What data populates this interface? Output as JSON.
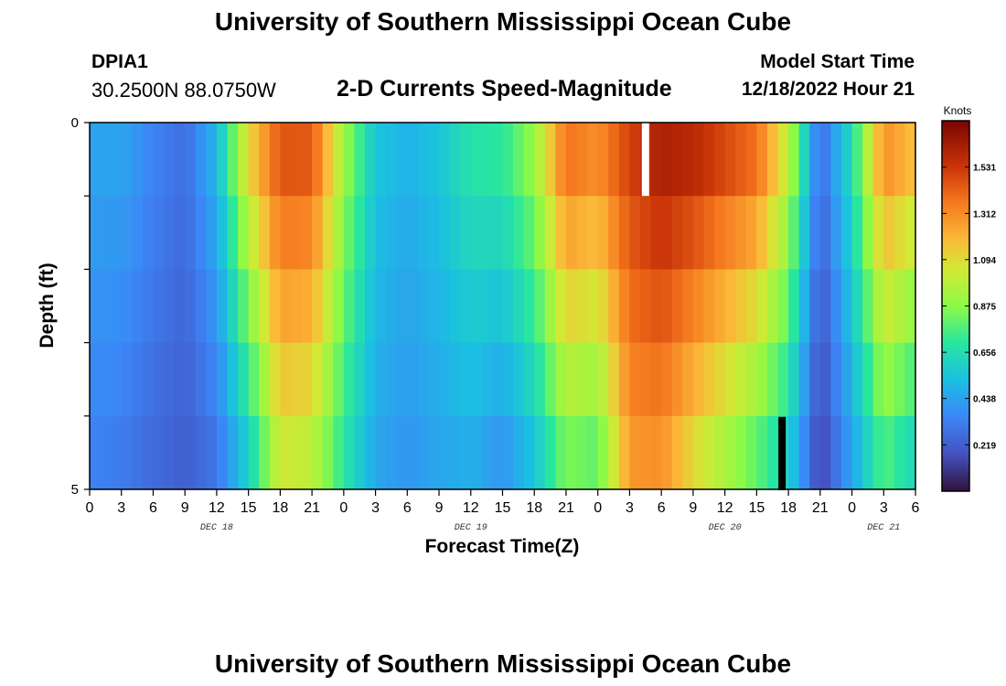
{
  "header": {
    "title": "University of Southern Mississippi Ocean Cube",
    "station_id": "DPIA1",
    "coordinates": "30.2500N  88.0750W",
    "subtitle": "2-D Currents Speed-Magnitude",
    "model_start_label": "Model Start Time",
    "model_start_value": "12/18/2022 Hour 21"
  },
  "footer": {
    "title": "University of Southern Mississippi Ocean Cube"
  },
  "chart_data": {
    "type": "heatmap",
    "xlabel": "Forecast Time(Z)",
    "ylabel": "Depth (ft)",
    "ylim": [
      0,
      5
    ],
    "y_ticks": [
      "0",
      "5"
    ],
    "x_ticks": [
      "0",
      "3",
      "6",
      "9",
      "12",
      "15",
      "18",
      "21",
      "0",
      "3",
      "6",
      "9",
      "12",
      "15",
      "18",
      "21",
      "0",
      "3",
      "6",
      "9",
      "12",
      "15",
      "18",
      "21",
      "0",
      "3",
      "6"
    ],
    "date_labels": [
      {
        "label": "DEC 18",
        "at_hour": 12
      },
      {
        "label": "DEC 19",
        "at_hour": 36
      },
      {
        "label": "DEC 20",
        "at_hour": 60
      },
      {
        "label": "DEC 21",
        "at_hour": 75
      }
    ],
    "x_range_hours": [
      0,
      78
    ],
    "colorbar": {
      "unit": "Knots",
      "ticks": [
        "1.531",
        "1.312",
        "1.094",
        "0.875",
        "0.656",
        "0.438",
        "0.219"
      ],
      "range": [
        0,
        1.75
      ]
    },
    "time_hours": [
      0,
      3,
      6,
      9,
      12,
      15,
      18,
      21,
      24,
      27,
      30,
      33,
      36,
      39,
      42,
      45,
      48,
      51,
      54,
      57,
      60,
      63,
      66,
      69,
      72,
      75,
      78
    ],
    "surface_speed": [
      0.44,
      0.44,
      0.34,
      0.27,
      0.5,
      1.1,
      1.45,
      1.44,
      0.92,
      0.55,
      0.48,
      0.55,
      0.68,
      0.7,
      0.9,
      1.38,
      1.3,
      1.5,
      1.62,
      1.58,
      1.48,
      1.38,
      1.0,
      0.25,
      0.65,
      1.3,
      1.16
    ],
    "bottom_speed": [
      0.34,
      0.32,
      0.26,
      0.22,
      0.3,
      0.6,
      1.05,
      1.0,
      0.7,
      0.45,
      0.4,
      0.45,
      0.48,
      0.4,
      0.55,
      0.85,
      0.8,
      1.28,
      1.3,
      1.1,
      0.95,
      0.8,
      0.6,
      0.13,
      0.45,
      0.78,
      0.62
    ],
    "depth_profile_factor": [
      1.0,
      0.98,
      0.92,
      0.83,
      0.7
    ],
    "gaps": [
      {
        "hour": 52.5,
        "depth_row": 0,
        "kind": "missing"
      },
      {
        "hour": 65.4,
        "depth_row": 4,
        "kind": "zero"
      }
    ]
  }
}
